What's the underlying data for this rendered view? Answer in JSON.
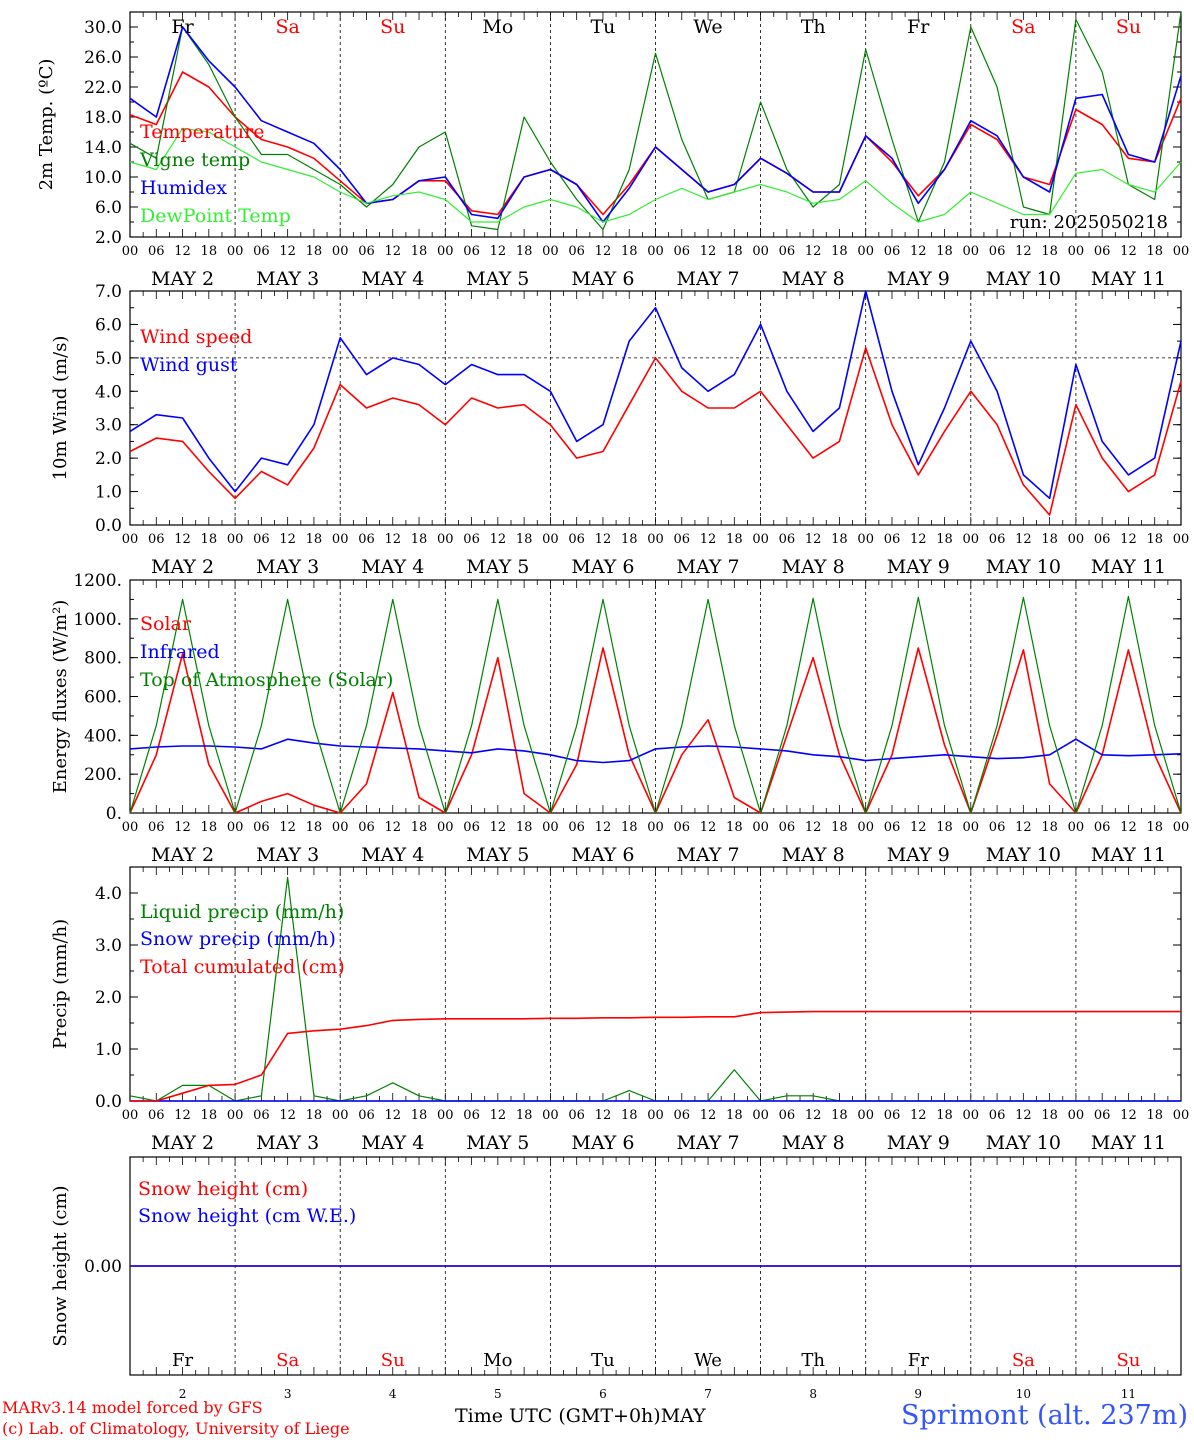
{
  "meta": {
    "run": "run: 2025050218",
    "model_line": "MARv3.14 model forced by GFS",
    "lab_line": "(c) Lab. of Climatology, University of Liege",
    "time_axis": "Time UTC (GMT+0h)",
    "month": "MAY",
    "location": "Sprimont (alt. 237m)"
  },
  "colors": {
    "red": "#ff0000",
    "green": "#008000",
    "blue": "#0000ff",
    "lightgreen": "#33ee33",
    "weekend": "#ff0000",
    "weekday": "#000000",
    "footer": "#ff0000",
    "location": "#3355ff"
  },
  "days": {
    "names": [
      "Fr",
      "Sa",
      "Su",
      "Mo",
      "Tu",
      "We",
      "Th",
      "Fr",
      "Sa",
      "Su"
    ],
    "weekend": [
      false,
      true,
      true,
      false,
      false,
      false,
      false,
      false,
      true,
      true
    ],
    "nums": [
      "2",
      "3",
      "4",
      "5",
      "6",
      "7",
      "8",
      "9",
      "10",
      "11"
    ],
    "date_labels": [
      "MAY  2",
      "MAY  3",
      "MAY  4",
      "MAY  5",
      "MAY  6",
      "MAY  7",
      "MAY  8",
      "MAY  9",
      "MAY 10",
      "MAY 11"
    ],
    "hour_labels": [
      "00",
      "06",
      "12",
      "18"
    ],
    "end_hour": "00"
  },
  "chart_data": [
    {
      "type": "line",
      "ylabel": "2m Temp. (ºC)",
      "ylim": [
        2,
        32
      ],
      "yticks": [
        "2.0",
        "6.0",
        "10.0",
        "14.0",
        "18.0",
        "22.0",
        "26.0",
        "30.0"
      ],
      "legend": [
        "Temperature",
        "Vigne temp",
        "Humidex",
        "DewPoint Temp"
      ],
      "x_hours": [
        0,
        6,
        12,
        18,
        24,
        30,
        36,
        42,
        48,
        54,
        60,
        66,
        72,
        78,
        84,
        90,
        96,
        102,
        108,
        114,
        120,
        126,
        132,
        138,
        144,
        150,
        156,
        162,
        168,
        174,
        180,
        186,
        192,
        198,
        204,
        210,
        216,
        222,
        228,
        234,
        240
      ],
      "series": [
        {
          "name": "Temperature",
          "color": "red",
          "values": [
            18.3,
            17.0,
            24.0,
            22.0,
            18.0,
            15.0,
            14.0,
            12.5,
            9.5,
            6.5,
            7.0,
            9.5,
            9.5,
            5.5,
            5.0,
            10.0,
            11.0,
            9.0,
            5.0,
            9.0,
            14.0,
            11.0,
            8.0,
            9.0,
            12.5,
            10.5,
            8.0,
            8.0,
            15.5,
            12.0,
            7.5,
            11.0,
            17.0,
            15.0,
            10.0,
            9.0,
            19.0,
            17.0,
            12.5,
            12.0,
            20.5
          ]
        },
        {
          "name": "Vigne temp",
          "color": "green",
          "values": [
            14.5,
            12.5,
            30.0,
            25.0,
            18.0,
            13.0,
            13.0,
            11.0,
            9.0,
            6.0,
            9.0,
            14.0,
            16.0,
            3.5,
            3.0,
            18.0,
            12.0,
            7.0,
            3.0,
            11.0,
            26.5,
            15.0,
            7.0,
            8.0,
            20.0,
            11.0,
            6.0,
            9.0,
            27.0,
            15.0,
            4.0,
            12.0,
            30.0,
            22.0,
            6.0,
            5.0,
            31.0,
            24.0,
            9.0,
            7.0,
            32.0
          ]
        },
        {
          "name": "Humidex",
          "color": "blue",
          "values": [
            20.5,
            18.0,
            30.0,
            25.5,
            22.0,
            17.5,
            16.0,
            14.5,
            11.0,
            6.5,
            7.0,
            9.5,
            10.0,
            5.0,
            4.5,
            10.0,
            11.0,
            9.0,
            4.0,
            8.5,
            14.0,
            11.0,
            8.0,
            9.0,
            12.5,
            10.5,
            8.0,
            8.0,
            15.5,
            12.5,
            6.5,
            11.0,
            17.5,
            15.5,
            10.0,
            8.0,
            20.5,
            21.0,
            13.0,
            12.0,
            23.5
          ]
        },
        {
          "name": "DewPoint Temp",
          "color": "lightgreen",
          "values": [
            12.0,
            11.0,
            16.5,
            16.0,
            14.0,
            12.0,
            11.0,
            10.0,
            8.0,
            6.5,
            7.5,
            8.0,
            7.0,
            4.0,
            4.0,
            6.0,
            7.0,
            6.0,
            4.0,
            5.0,
            7.0,
            8.5,
            7.0,
            8.0,
            9.0,
            8.0,
            6.5,
            7.0,
            9.5,
            6.5,
            4.0,
            5.0,
            8.0,
            6.5,
            5.0,
            5.0,
            10.5,
            11.0,
            9.0,
            8.0,
            12.0
          ]
        }
      ]
    },
    {
      "type": "line",
      "ylabel": "10m Wind (m/s)",
      "ylim": [
        0,
        7
      ],
      "yticks": [
        "0.0",
        "1.0",
        "2.0",
        "3.0",
        "4.0",
        "5.0",
        "6.0",
        "7.0"
      ],
      "reference_line": 5,
      "legend": [
        "Wind speed",
        "Wind gust"
      ],
      "x_hours": [
        0,
        6,
        12,
        18,
        24,
        30,
        36,
        42,
        48,
        54,
        60,
        66,
        72,
        78,
        84,
        90,
        96,
        102,
        108,
        114,
        120,
        126,
        132,
        138,
        144,
        150,
        156,
        162,
        168,
        174,
        180,
        186,
        192,
        198,
        204,
        210,
        216,
        222,
        228,
        234,
        240
      ],
      "series": [
        {
          "name": "Wind speed",
          "color": "red",
          "values": [
            2.2,
            2.6,
            2.5,
            1.6,
            0.8,
            1.6,
            1.2,
            2.3,
            4.2,
            3.5,
            3.8,
            3.6,
            3.0,
            3.8,
            3.5,
            3.6,
            3.0,
            2.0,
            2.2,
            3.6,
            5.0,
            4.0,
            3.5,
            3.5,
            4.0,
            3.0,
            2.0,
            2.5,
            5.3,
            3.0,
            1.5,
            2.8,
            4.0,
            3.0,
            1.2,
            0.3,
            3.6,
            2.0,
            1.0,
            1.5,
            4.3
          ]
        },
        {
          "name": "Wind gust",
          "color": "blue",
          "values": [
            2.8,
            3.3,
            3.2,
            2.0,
            1.0,
            2.0,
            1.8,
            3.0,
            5.6,
            4.5,
            5.0,
            4.8,
            4.2,
            4.8,
            4.5,
            4.5,
            4.0,
            2.5,
            3.0,
            5.5,
            6.5,
            4.7,
            4.0,
            4.5,
            6.0,
            4.0,
            2.8,
            3.5,
            7.0,
            4.0,
            1.8,
            3.5,
            5.5,
            4.0,
            1.5,
            0.8,
            4.8,
            2.5,
            1.5,
            2.0,
            5.5
          ]
        }
      ]
    },
    {
      "type": "line",
      "ylabel": "Energy fluxes (W/m²)",
      "ylim": [
        0,
        1200
      ],
      "yticks": [
        "0.",
        "200.",
        "400.",
        "600.",
        "800.",
        "1000.",
        "1200."
      ],
      "legend": [
        "Solar",
        "Infrared",
        "Top of Atmosphere (Solar)"
      ],
      "x_hours": [
        0,
        6,
        12,
        18,
        24,
        30,
        36,
        42,
        48,
        54,
        60,
        66,
        72,
        78,
        84,
        90,
        96,
        102,
        108,
        114,
        120,
        126,
        132,
        138,
        144,
        150,
        156,
        162,
        168,
        174,
        180,
        186,
        192,
        198,
        204,
        210,
        216,
        222,
        228,
        234,
        240
      ],
      "series": [
        {
          "name": "Solar",
          "color": "red",
          "values": [
            0,
            300,
            820,
            250,
            0,
            60,
            100,
            40,
            0,
            150,
            620,
            80,
            0,
            300,
            800,
            100,
            0,
            250,
            850,
            300,
            0,
            300,
            480,
            80,
            0,
            400,
            800,
            300,
            0,
            300,
            850,
            350,
            0,
            400,
            840,
            150,
            0,
            300,
            840,
            300,
            0
          ]
        },
        {
          "name": "Infrared",
          "color": "blue",
          "values": [
            330,
            340,
            345,
            345,
            340,
            330,
            380,
            360,
            345,
            340,
            335,
            330,
            320,
            310,
            330,
            320,
            300,
            270,
            260,
            270,
            330,
            340,
            345,
            340,
            330,
            320,
            300,
            290,
            270,
            280,
            290,
            300,
            290,
            280,
            285,
            300,
            380,
            300,
            295,
            300,
            305
          ]
        },
        {
          "name": "Top of Atmosphere (Solar)",
          "color": "green",
          "values": [
            0,
            450,
            1100,
            450,
            0,
            450,
            1100,
            450,
            0,
            450,
            1100,
            450,
            0,
            450,
            1100,
            450,
            0,
            450,
            1100,
            450,
            0,
            450,
            1100,
            450,
            0,
            450,
            1105,
            450,
            0,
            450,
            1110,
            450,
            0,
            450,
            1110,
            450,
            0,
            450,
            1115,
            450,
            0
          ]
        }
      ]
    },
    {
      "type": "line",
      "ylabel": "Precip (mm/h)",
      "ylim": [
        0,
        4.5
      ],
      "yticks": [
        "0.0",
        "1.0",
        "2.0",
        "3.0",
        "4.0"
      ],
      "legend": [
        "Liquid precip (mm/h)",
        "Snow precip (mm/h)",
        "Total cumulated (cm)"
      ],
      "x_hours": [
        0,
        6,
        12,
        18,
        24,
        30,
        36,
        42,
        48,
        54,
        60,
        66,
        72,
        78,
        84,
        90,
        96,
        102,
        108,
        114,
        120,
        126,
        132,
        138,
        144,
        150,
        156,
        162,
        168,
        174,
        180,
        186,
        192,
        198,
        204,
        210,
        216,
        222,
        228,
        234,
        240
      ],
      "series": [
        {
          "name": "Liquid precip (mm/h)",
          "color": "green",
          "values": [
            0.1,
            0,
            0.3,
            0.3,
            0,
            0.1,
            4.3,
            0.1,
            0,
            0.1,
            0.35,
            0.1,
            0,
            0,
            0,
            0,
            0,
            0,
            0,
            0.2,
            0,
            0,
            0,
            0.6,
            0,
            0.1,
            0.1,
            0,
            0,
            0,
            0,
            0,
            0,
            0,
            0,
            0,
            0,
            0,
            0,
            0,
            0
          ]
        },
        {
          "name": "Snow precip (mm/h)",
          "color": "blue",
          "values": [
            0,
            0,
            0,
            0,
            0,
            0,
            0,
            0,
            0,
            0,
            0,
            0,
            0,
            0,
            0,
            0,
            0,
            0,
            0,
            0,
            0,
            0,
            0,
            0,
            0,
            0,
            0,
            0,
            0,
            0,
            0,
            0,
            0,
            0,
            0,
            0,
            0,
            0,
            0,
            0,
            0
          ]
        },
        {
          "name": "Total cumulated (cm)",
          "color": "red",
          "values": [
            0,
            0,
            0.15,
            0.3,
            0.32,
            0.5,
            1.3,
            1.35,
            1.38,
            1.45,
            1.55,
            1.57,
            1.58,
            1.58,
            1.58,
            1.58,
            1.59,
            1.59,
            1.6,
            1.6,
            1.61,
            1.61,
            1.62,
            1.62,
            1.7,
            1.71,
            1.72,
            1.72,
            1.72,
            1.72,
            1.72,
            1.72,
            1.72,
            1.72,
            1.72,
            1.72,
            1.72,
            1.72,
            1.72,
            1.72,
            1.72
          ]
        }
      ]
    },
    {
      "type": "line",
      "ylabel": "Snow height (cm)",
      "ylim": [
        -1,
        1
      ],
      "yticks": [
        "0.00"
      ],
      "legend": [
        "Snow height (cm)",
        "Snow height (cm W.E.)"
      ],
      "x_hours": [
        0,
        240
      ],
      "series": [
        {
          "name": "Snow height (cm)",
          "color": "red",
          "values": [
            0,
            0
          ]
        },
        {
          "name": "Snow height (cm W.E.)",
          "color": "blue",
          "values": [
            0,
            0
          ]
        }
      ]
    }
  ]
}
